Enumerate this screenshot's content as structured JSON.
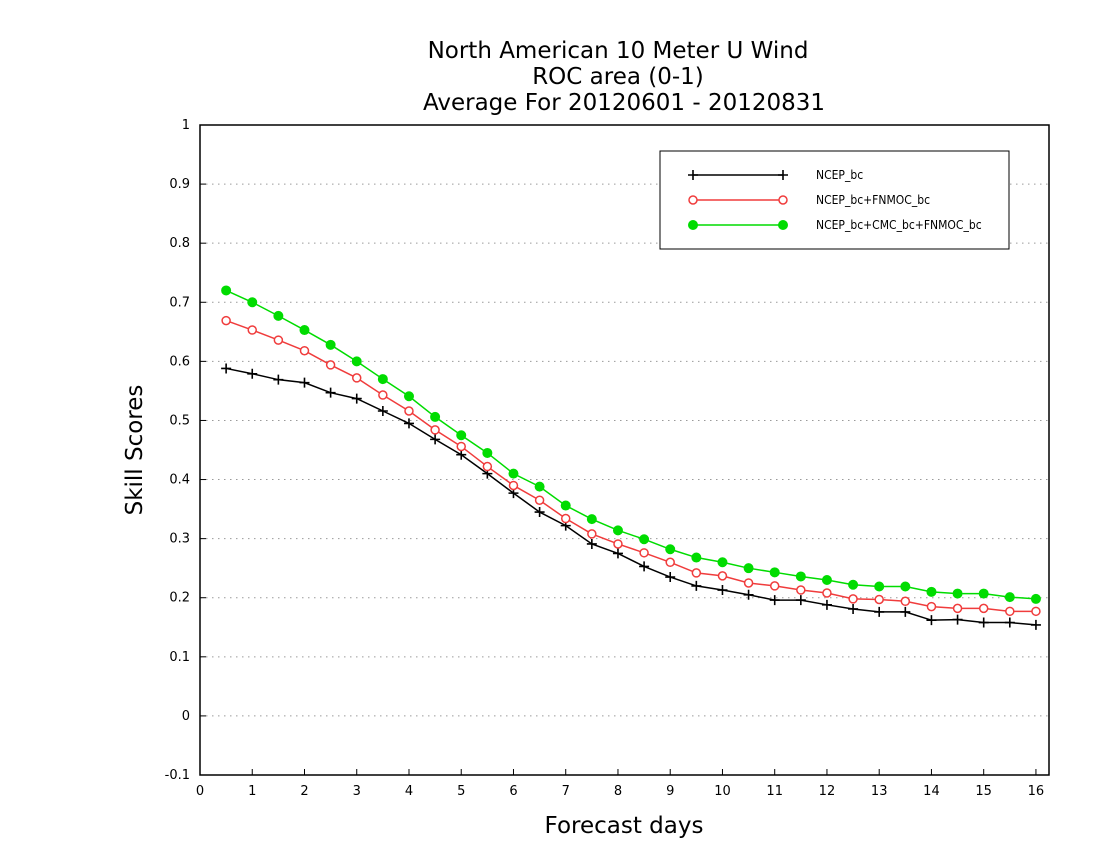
{
  "chart_data": {
    "type": "line",
    "title": [
      "North American 10 Meter U Wind",
      "ROC area (0-1)",
      "Average For 20120601 - 20120831"
    ],
    "xlabel": "Forecast days",
    "ylabel": "Skill Scores",
    "xlim": [
      0,
      16.25
    ],
    "ylim": [
      -0.1,
      1
    ],
    "xticks": [
      0,
      1,
      2,
      3,
      4,
      5,
      6,
      7,
      8,
      9,
      10,
      11,
      12,
      13,
      14,
      15,
      16
    ],
    "xtick_labels": [
      "0",
      "1",
      "2",
      "3",
      "4",
      "5",
      "6",
      "7",
      "8",
      "9",
      "10",
      "11",
      "12",
      "13",
      "14",
      "15",
      "16"
    ],
    "yticks": [
      -0.1,
      0,
      0.1,
      0.2,
      0.3,
      0.4,
      0.5,
      0.6,
      0.7,
      0.8,
      0.9,
      1
    ],
    "ytick_labels": [
      "-0.1",
      "0",
      "0.1",
      "0.2",
      "0.3",
      "0.4",
      "0.5",
      "0.6",
      "0.7",
      "0.8",
      "0.9",
      "1"
    ],
    "grid": "horizontal dotted",
    "legend_position": "top-right",
    "x": [
      0.5,
      1.0,
      1.5,
      2.0,
      2.5,
      3.0,
      3.5,
      4.0,
      4.5,
      5.0,
      5.5,
      6.0,
      6.5,
      7.0,
      7.5,
      8.0,
      8.5,
      9.0,
      9.5,
      10.0,
      10.5,
      11.0,
      11.5,
      12.0,
      12.5,
      13.0,
      13.5,
      14.0,
      14.5,
      15.0,
      15.5,
      16.0
    ],
    "series": [
      {
        "name": "NCEP_bc",
        "color": "#000000",
        "marker": "plus",
        "values": [
          0.588,
          0.579,
          0.569,
          0.564,
          0.547,
          0.537,
          0.516,
          0.495,
          0.468,
          0.442,
          0.41,
          0.377,
          0.345,
          0.322,
          0.291,
          0.275,
          0.253,
          0.235,
          0.22,
          0.213,
          0.205,
          0.196,
          0.196,
          0.188,
          0.181,
          0.176,
          0.176,
          0.162,
          0.163,
          0.158,
          0.158,
          0.154
        ]
      },
      {
        "name": "NCEP_bc+FNMOC_bc",
        "color": "#f03c3c",
        "marker": "open-circle",
        "values": [
          0.669,
          0.653,
          0.636,
          0.618,
          0.594,
          0.572,
          0.543,
          0.516,
          0.484,
          0.456,
          0.422,
          0.39,
          0.365,
          0.334,
          0.308,
          0.291,
          0.276,
          0.26,
          0.242,
          0.237,
          0.225,
          0.22,
          0.213,
          0.208,
          0.198,
          0.197,
          0.194,
          0.185,
          0.182,
          0.182,
          0.177,
          0.177
        ]
      },
      {
        "name": "NCEP_bc+CMC_bc+FNMOC_bc",
        "color": "#00dc00",
        "marker": "filled-circle",
        "values": [
          0.72,
          0.7,
          0.677,
          0.653,
          0.628,
          0.6,
          0.57,
          0.541,
          0.506,
          0.475,
          0.445,
          0.41,
          0.388,
          0.356,
          0.333,
          0.314,
          0.299,
          0.282,
          0.268,
          0.26,
          0.25,
          0.243,
          0.236,
          0.23,
          0.222,
          0.219,
          0.219,
          0.21,
          0.207,
          0.207,
          0.201,
          0.198
        ]
      }
    ]
  }
}
